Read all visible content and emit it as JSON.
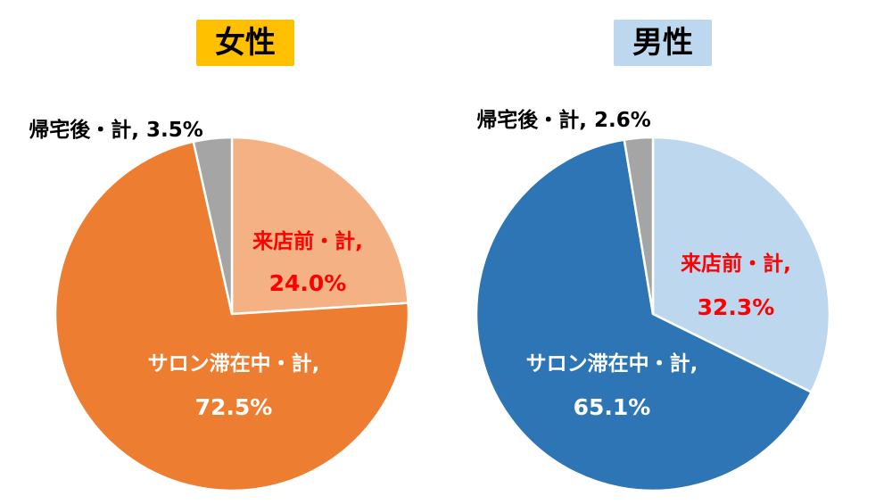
{
  "chart_data": [
    {
      "type": "pie",
      "title": "女性",
      "title_bg": "#ffc000",
      "slices": [
        {
          "label": "来店前・計,",
          "value": 24.0,
          "value_text": "24.0%",
          "color": "#f4b183",
          "label_color": "#ff0000"
        },
        {
          "label": "サロン滞在中・計,",
          "value": 72.5,
          "value_text": "72.5%",
          "color": "#ed7d31",
          "label_color": "#ffffff"
        },
        {
          "label": "帰宅後・計,",
          "value": 3.5,
          "value_text": "3.5%",
          "color": "#a5a5a5",
          "label_color": "#000000"
        }
      ]
    },
    {
      "type": "pie",
      "title": "男性",
      "title_bg": "#bdd7ee",
      "slices": [
        {
          "label": "来店前・計,",
          "value": 32.3,
          "value_text": "32.3%",
          "color": "#bdd7ee",
          "label_color": "#ff0000"
        },
        {
          "label": "サロン滞在中・計,",
          "value": 65.1,
          "value_text": "65.1%",
          "color": "#2e75b6",
          "label_color": "#ffffff"
        },
        {
          "label": "帰宅後・計,",
          "value": 2.6,
          "value_text": "2.6%",
          "color": "#a5a5a5",
          "label_color": "#000000"
        }
      ]
    }
  ]
}
